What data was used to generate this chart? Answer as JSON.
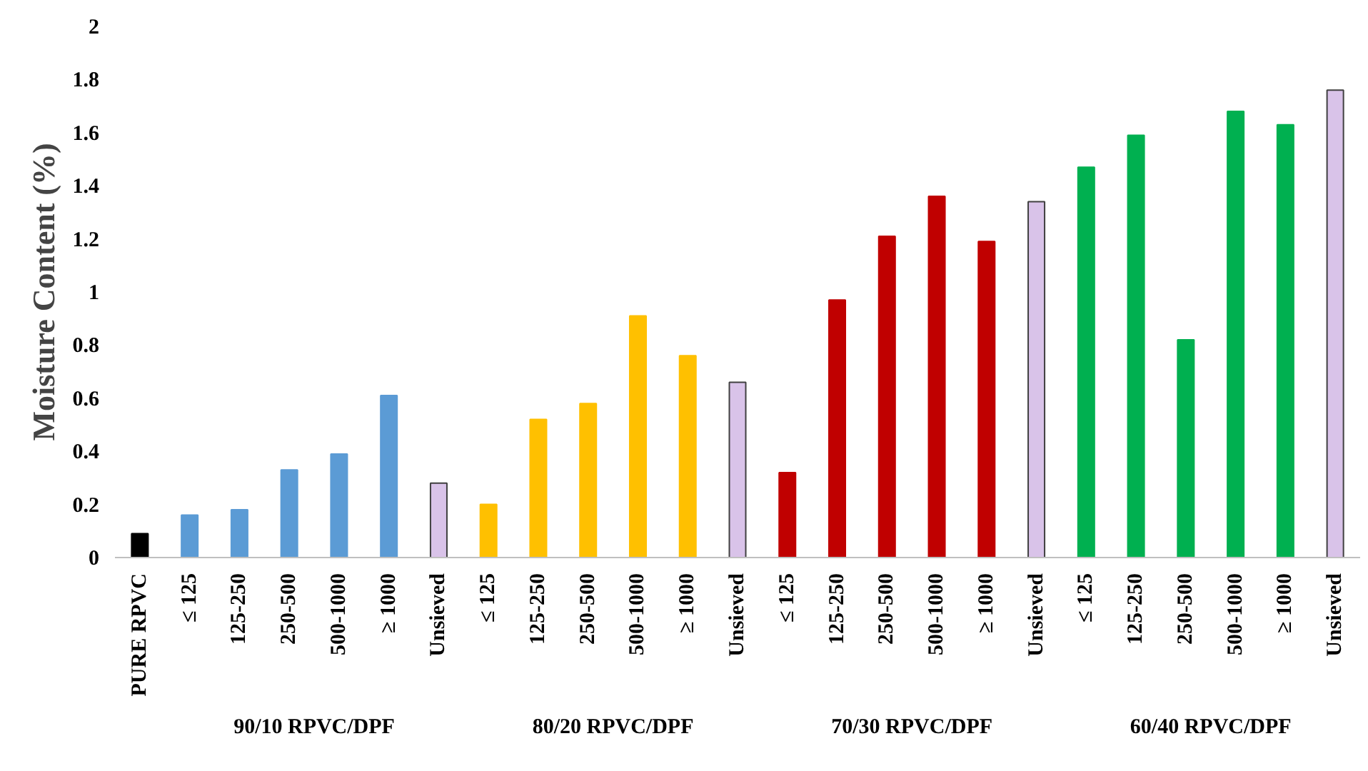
{
  "chart_data": {
    "type": "bar",
    "ylabel": "Moisture Content (%)",
    "categories": [
      "PURE RPVC",
      "≤ 125",
      "125-250",
      "250-500",
      "500-1000",
      "≥ 1000",
      "Unsieved",
      "≤ 125",
      "125-250",
      "250-500",
      "500-1000",
      "≥ 1000",
      "Unsieved",
      "≤ 125",
      "125-250",
      "250-500",
      "500-1000",
      "≥ 1000",
      "Unsieved",
      "≤ 125",
      "125-250",
      "250-500",
      "500-1000",
      "≥ 1000",
      "Unsieved"
    ],
    "values": [
      0.09,
      0.16,
      0.18,
      0.33,
      0.39,
      0.61,
      0.28,
      0.2,
      0.52,
      0.58,
      0.91,
      0.76,
      0.66,
      0.32,
      0.97,
      1.21,
      1.36,
      1.19,
      1.34,
      1.47,
      1.59,
      0.82,
      1.68,
      1.63,
      1.76
    ],
    "colors": [
      "#000000",
      "#5b9bd5",
      "#5b9bd5",
      "#5b9bd5",
      "#5b9bd5",
      "#5b9bd5",
      "#d9c3e9",
      "#ffc000",
      "#ffc000",
      "#ffc000",
      "#ffc000",
      "#ffc000",
      "#d9c3e9",
      "#c00000",
      "#c00000",
      "#c00000",
      "#c00000",
      "#c00000",
      "#d9c3e9",
      "#00b050",
      "#00b050",
      "#00b050",
      "#00b050",
      "#00b050",
      "#d9c3e9"
    ],
    "annotations": [
      "90/10 RPVC/DPF",
      "80/20 RPVC/DPF",
      "70/30 RPVC/DPF",
      "60/40 RPVC/DPF"
    ],
    "ylim": [
      0,
      2
    ],
    "yticks": [
      0,
      0.2,
      0.4,
      0.6,
      0.8,
      1,
      1.2,
      1.4,
      1.6,
      1.8,
      2
    ],
    "grid": false
  }
}
